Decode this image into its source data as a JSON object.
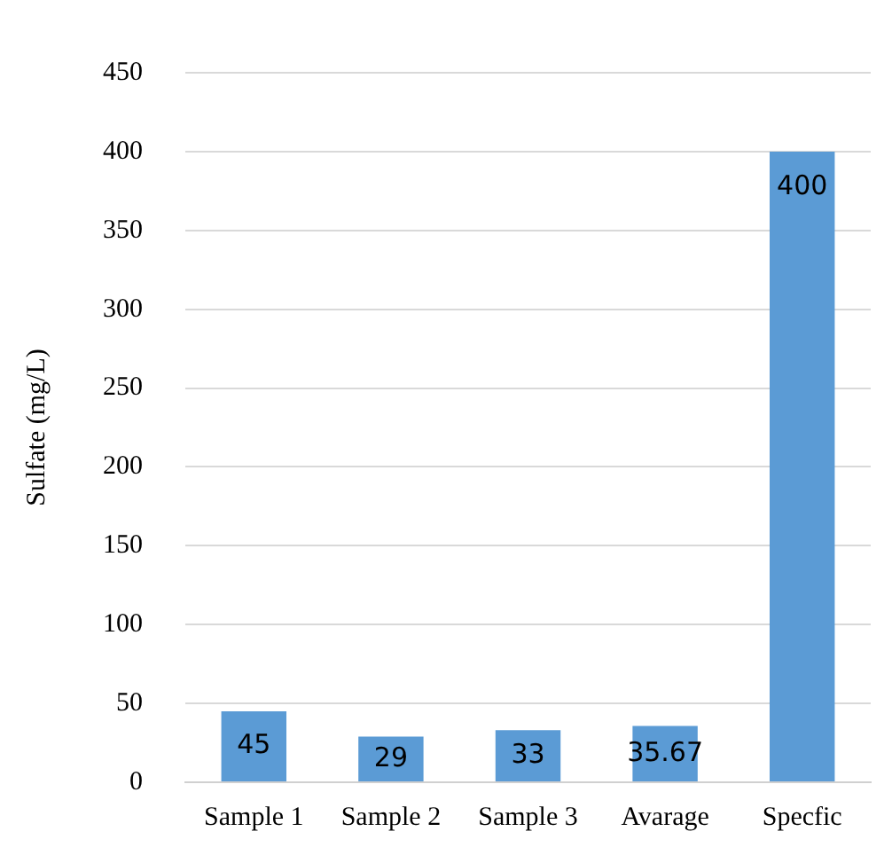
{
  "chart_data": {
    "type": "bar",
    "ylabel": "Sulfate (mg/L)",
    "categories": [
      "Sample 1",
      "Sample 2",
      "Sample 3",
      "Avarage",
      "Specfic"
    ],
    "values": [
      45,
      29,
      33,
      35.67,
      400
    ],
    "color": "#5b9bd5",
    "ylim": [
      0,
      450
    ],
    "yticks": [
      0,
      50,
      100,
      150,
      200,
      250,
      300,
      350,
      400,
      450
    ],
    "grid": "y",
    "data_labels": true,
    "legend": false
  }
}
